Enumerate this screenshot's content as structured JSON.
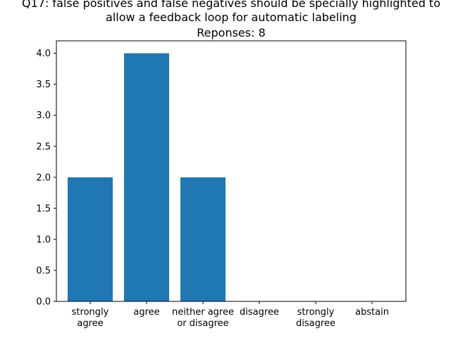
{
  "chart_data": {
    "type": "bar",
    "title_lines": [
      "Q17: false positives and false negatives should be specially highlighted to",
      "allow a feedback loop for automatic labeling",
      "Reponses: 8"
    ],
    "categories": [
      [
        "strongly",
        "agree"
      ],
      [
        "agree"
      ],
      [
        "neither agree",
        "or disagree"
      ],
      [
        "disagree"
      ],
      [
        "strongly",
        "disagree"
      ],
      [
        "abstain"
      ]
    ],
    "values": [
      2,
      4,
      2,
      0,
      0,
      0
    ],
    "ylim": [
      0,
      4.2
    ],
    "yticks": [
      "0.0",
      "0.5",
      "1.0",
      "1.5",
      "2.0",
      "2.5",
      "3.0",
      "3.5",
      "4.0"
    ],
    "xlabel": "",
    "ylabel": "",
    "grid": false,
    "bar_color": "#1f77b4"
  }
}
